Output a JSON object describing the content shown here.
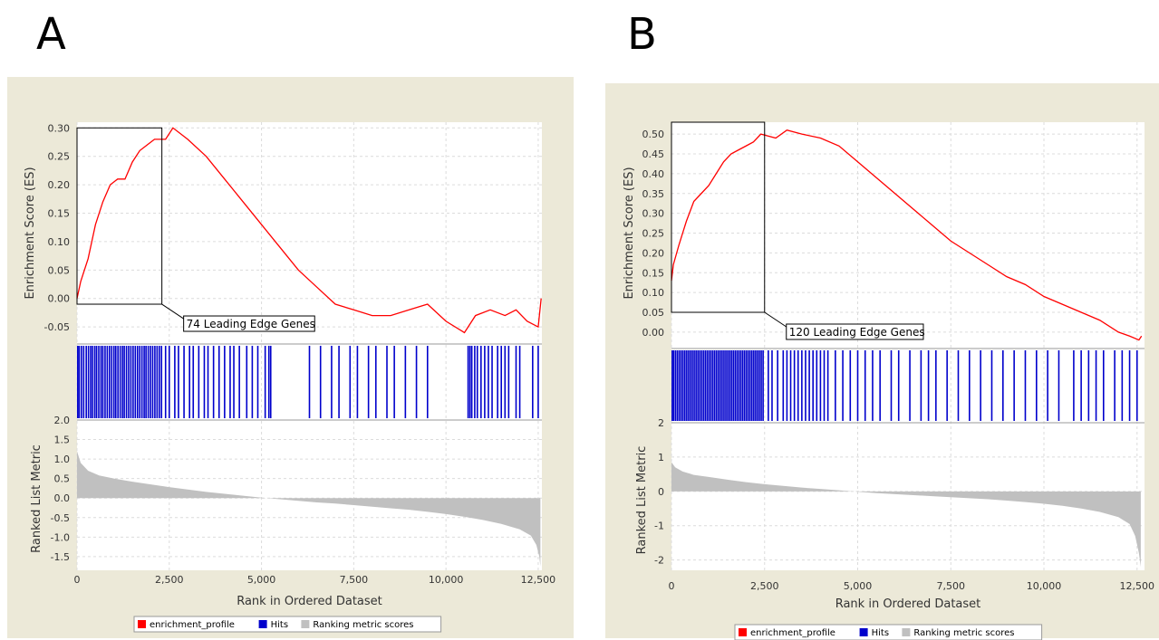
{
  "panels": [
    {
      "letter": "A",
      "leading_edge_label": "74 Leading Edge Genes",
      "legend": [
        "enrichment_profile",
        "Hits",
        "Ranking metric scores"
      ]
    },
    {
      "letter": "B",
      "leading_edge_label": "120 Leading Edge Genes",
      "legend": [
        "enrichment_profile",
        "Hits",
        "Ranking metric scores"
      ]
    }
  ],
  "colors": {
    "background": "#ece9d8",
    "enrichment_profile": "#ff0000",
    "hits": "#0000cc",
    "ranking_metric": "#c0c0c0",
    "grid": "#dcdcdc"
  },
  "chart_data": [
    {
      "type": "line",
      "panel": "A",
      "x_label": "Rank in Ordered Dataset",
      "es_label": "Enrichment Score (ES)",
      "metric_label": "Ranked List Metric",
      "x_range": [
        0,
        12600
      ],
      "x_ticks": [
        "0",
        "2,500",
        "5,000",
        "7,500",
        "10,000",
        "12,500"
      ],
      "es_range": [
        -0.08,
        0.31
      ],
      "es_ticks": [
        "-0.05",
        "0.00",
        "0.05",
        "0.10",
        "0.15",
        "0.20",
        "0.25",
        "0.30"
      ],
      "metric_range": [
        -1.85,
        2.0
      ],
      "metric_ticks": [
        "-1.5",
        "-1.0",
        "-0.5",
        "0.0",
        "0.5",
        "1.0",
        "1.5",
        "2.0"
      ],
      "leading_edge": {
        "x_end": 2300,
        "es_min": -0.01,
        "es_max": 0.3
      },
      "es_curve": [
        [
          0,
          0.0
        ],
        [
          100,
          0.03
        ],
        [
          300,
          0.07
        ],
        [
          500,
          0.13
        ],
        [
          700,
          0.17
        ],
        [
          900,
          0.2
        ],
        [
          1100,
          0.21
        ],
        [
          1300,
          0.21
        ],
        [
          1500,
          0.24
        ],
        [
          1700,
          0.26
        ],
        [
          1900,
          0.27
        ],
        [
          2100,
          0.28
        ],
        [
          2400,
          0.28
        ],
        [
          2600,
          0.3
        ],
        [
          3000,
          0.28
        ],
        [
          3500,
          0.25
        ],
        [
          4000,
          0.21
        ],
        [
          4500,
          0.17
        ],
        [
          5000,
          0.13
        ],
        [
          5500,
          0.09
        ],
        [
          6000,
          0.05
        ],
        [
          6500,
          0.02
        ],
        [
          7000,
          -0.01
        ],
        [
          7500,
          -0.02
        ],
        [
          8000,
          -0.03
        ],
        [
          8500,
          -0.03
        ],
        [
          9000,
          -0.02
        ],
        [
          9500,
          -0.01
        ],
        [
          10000,
          -0.04
        ],
        [
          10500,
          -0.06
        ],
        [
          10800,
          -0.03
        ],
        [
          11200,
          -0.02
        ],
        [
          11600,
          -0.03
        ],
        [
          11900,
          -0.02
        ],
        [
          12200,
          -0.04
        ],
        [
          12500,
          -0.05
        ],
        [
          12580,
          0.0
        ]
      ],
      "metric_curve": [
        [
          0,
          1.2
        ],
        [
          100,
          0.9
        ],
        [
          300,
          0.7
        ],
        [
          600,
          0.58
        ],
        [
          1000,
          0.5
        ],
        [
          1500,
          0.42
        ],
        [
          2000,
          0.35
        ],
        [
          2500,
          0.28
        ],
        [
          3000,
          0.22
        ],
        [
          3500,
          0.16
        ],
        [
          4000,
          0.11
        ],
        [
          4500,
          0.06
        ],
        [
          5000,
          0.01
        ],
        [
          5500,
          -0.03
        ],
        [
          6000,
          -0.07
        ],
        [
          6500,
          -0.11
        ],
        [
          7000,
          -0.14
        ],
        [
          7500,
          -0.18
        ],
        [
          8000,
          -0.22
        ],
        [
          8500,
          -0.26
        ],
        [
          9000,
          -0.3
        ],
        [
          9500,
          -0.35
        ],
        [
          10000,
          -0.41
        ],
        [
          10500,
          -0.48
        ],
        [
          11000,
          -0.56
        ],
        [
          11500,
          -0.66
        ],
        [
          12000,
          -0.8
        ],
        [
          12300,
          -0.96
        ],
        [
          12450,
          -1.2
        ],
        [
          12530,
          -1.5
        ],
        [
          12560,
          -1.75
        ]
      ],
      "hits": [
        20,
        60,
        120,
        180,
        250,
        310,
        370,
        420,
        480,
        530,
        590,
        650,
        700,
        760,
        820,
        880,
        940,
        1000,
        1050,
        1110,
        1170,
        1230,
        1280,
        1340,
        1400,
        1460,
        1520,
        1580,
        1640,
        1700,
        1760,
        1820,
        1870,
        1930,
        1990,
        2050,
        2110,
        2170,
        2230,
        2290,
        2400,
        2500,
        2650,
        2750,
        2900,
        3050,
        3150,
        3300,
        3450,
        3550,
        3700,
        3850,
        4000,
        4150,
        4250,
        4400,
        4600,
        4750,
        4900,
        5100,
        5200,
        5250,
        6300,
        6600,
        6900,
        7100,
        7400,
        7600,
        7900,
        8100,
        8400,
        8600,
        8900,
        9200,
        9500,
        10600,
        10650,
        10700,
        10780,
        10850,
        10950,
        11050,
        11150,
        11250,
        11400,
        11500,
        11600,
        11700,
        11900,
        12000,
        12350,
        12500
      ]
    },
    {
      "type": "line",
      "panel": "B",
      "x_label": "Rank in Ordered Dataset",
      "es_label": "Enrichment Score (ES)",
      "metric_label": "Ranked List Metric",
      "x_range": [
        0,
        12700
      ],
      "x_ticks": [
        "0",
        "2,500",
        "5,000",
        "7,500",
        "10,000",
        "12,500"
      ],
      "es_range": [
        -0.03,
        0.53
      ],
      "es_ticks": [
        "0.00",
        "0.05",
        "0.10",
        "0.15",
        "0.20",
        "0.25",
        "0.30",
        "0.35",
        "0.40",
        "0.45",
        "0.50"
      ],
      "metric_range": [
        -2.3,
        2.0
      ],
      "metric_ticks": [
        "-2",
        "-1",
        "0",
        "1",
        "2"
      ],
      "leading_edge": {
        "x_end": 2500,
        "es_min": 0.05,
        "es_max": 0.53
      },
      "es_curve": [
        [
          0,
          0.13
        ],
        [
          50,
          0.17
        ],
        [
          200,
          0.22
        ],
        [
          400,
          0.28
        ],
        [
          600,
          0.33
        ],
        [
          800,
          0.35
        ],
        [
          1000,
          0.37
        ],
        [
          1200,
          0.4
        ],
        [
          1400,
          0.43
        ],
        [
          1600,
          0.45
        ],
        [
          1800,
          0.46
        ],
        [
          2000,
          0.47
        ],
        [
          2200,
          0.48
        ],
        [
          2400,
          0.5
        ],
        [
          2800,
          0.49
        ],
        [
          3100,
          0.51
        ],
        [
          3500,
          0.5
        ],
        [
          4000,
          0.49
        ],
        [
          4500,
          0.47
        ],
        [
          5000,
          0.43
        ],
        [
          5500,
          0.39
        ],
        [
          6000,
          0.35
        ],
        [
          6500,
          0.31
        ],
        [
          7000,
          0.27
        ],
        [
          7500,
          0.23
        ],
        [
          8000,
          0.2
        ],
        [
          8500,
          0.17
        ],
        [
          9000,
          0.14
        ],
        [
          9500,
          0.12
        ],
        [
          10000,
          0.09
        ],
        [
          10500,
          0.07
        ],
        [
          11000,
          0.05
        ],
        [
          11500,
          0.03
        ],
        [
          12000,
          0.0
        ],
        [
          12300,
          -0.01
        ],
        [
          12550,
          -0.02
        ],
        [
          12620,
          -0.01
        ]
      ],
      "metric_curve": [
        [
          0,
          0.85
        ],
        [
          100,
          0.7
        ],
        [
          300,
          0.58
        ],
        [
          600,
          0.48
        ],
        [
          1000,
          0.42
        ],
        [
          1500,
          0.34
        ],
        [
          2000,
          0.27
        ],
        [
          2500,
          0.21
        ],
        [
          3000,
          0.16
        ],
        [
          3500,
          0.11
        ],
        [
          4000,
          0.07
        ],
        [
          4500,
          0.03
        ],
        [
          5000,
          -0.01
        ],
        [
          5500,
          -0.05
        ],
        [
          6000,
          -0.08
        ],
        [
          6500,
          -0.11
        ],
        [
          7000,
          -0.14
        ],
        [
          7500,
          -0.17
        ],
        [
          8000,
          -0.2
        ],
        [
          8500,
          -0.23
        ],
        [
          9000,
          -0.27
        ],
        [
          9500,
          -0.31
        ],
        [
          10000,
          -0.36
        ],
        [
          10500,
          -0.42
        ],
        [
          11000,
          -0.5
        ],
        [
          11500,
          -0.6
        ],
        [
          12000,
          -0.75
        ],
        [
          12300,
          -0.95
        ],
        [
          12450,
          -1.3
        ],
        [
          12550,
          -1.8
        ],
        [
          12600,
          -2.2
        ]
      ],
      "hits": [
        20,
        60,
        110,
        160,
        210,
        260,
        310,
        360,
        410,
        460,
        510,
        560,
        610,
        660,
        710,
        760,
        810,
        860,
        910,
        960,
        1010,
        1060,
        1110,
        1160,
        1210,
        1260,
        1310,
        1360,
        1410,
        1460,
        1510,
        1560,
        1610,
        1660,
        1710,
        1760,
        1810,
        1860,
        1910,
        1960,
        2010,
        2060,
        2110,
        2160,
        2210,
        2260,
        2310,
        2360,
        2410,
        2460,
        2600,
        2700,
        2850,
        3000,
        3100,
        3200,
        3300,
        3400,
        3500,
        3600,
        3700,
        3800,
        3900,
        4000,
        4100,
        4200,
        4400,
        4600,
        4800,
        5000,
        5200,
        5400,
        5600,
        5900,
        6100,
        6400,
        6700,
        6900,
        7100,
        7400,
        7700,
        8000,
        8300,
        8600,
        8900,
        9200,
        9500,
        9800,
        10100,
        10400,
        10800,
        11000,
        11200,
        11400,
        11600,
        11900,
        12100,
        12300,
        12500
      ]
    }
  ]
}
